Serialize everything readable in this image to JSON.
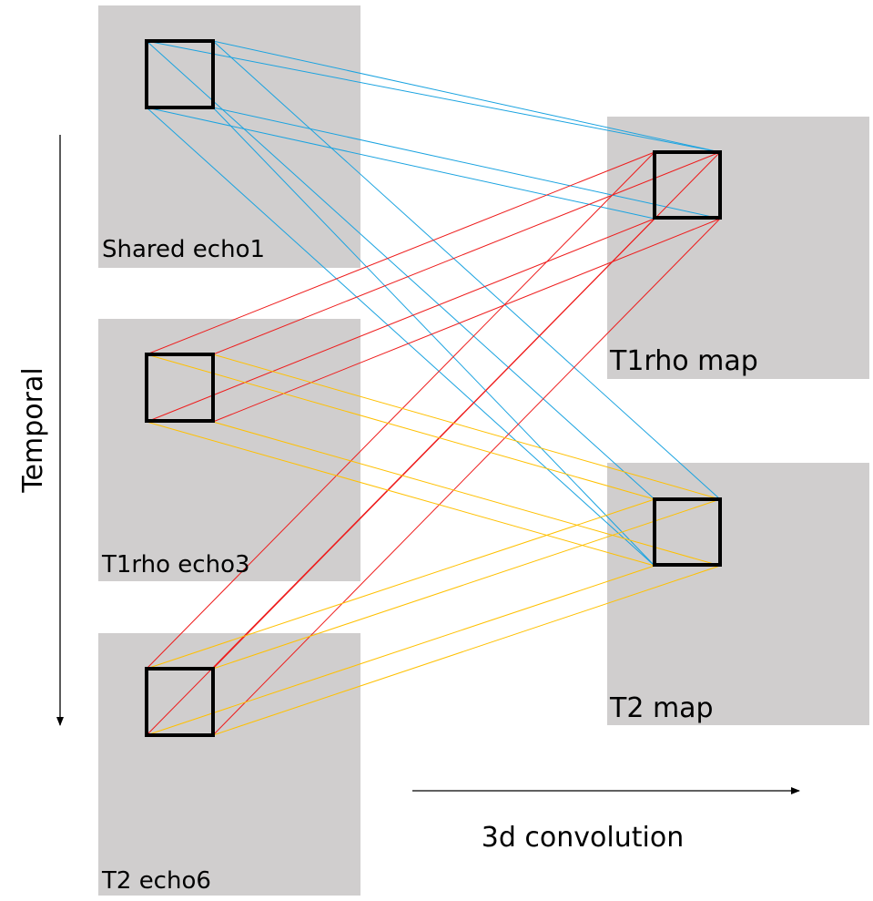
{
  "panels": {
    "shared_echo1": "Shared echo1",
    "t1rho_echo3": "T1rho echo3",
    "t2_echo6": "T2 echo6",
    "t1rho_map": "T1rho map",
    "t2_map": "T2 map"
  },
  "axes": {
    "temporal": "Temporal",
    "conv": "3d convolution"
  },
  "colors": {
    "panel_bg": "#d0cece",
    "box_stroke": "#000000",
    "blue_lines": "#1aa3e0",
    "red_lines": "#ee1c1c",
    "yellow_lines": "#ffc000"
  }
}
